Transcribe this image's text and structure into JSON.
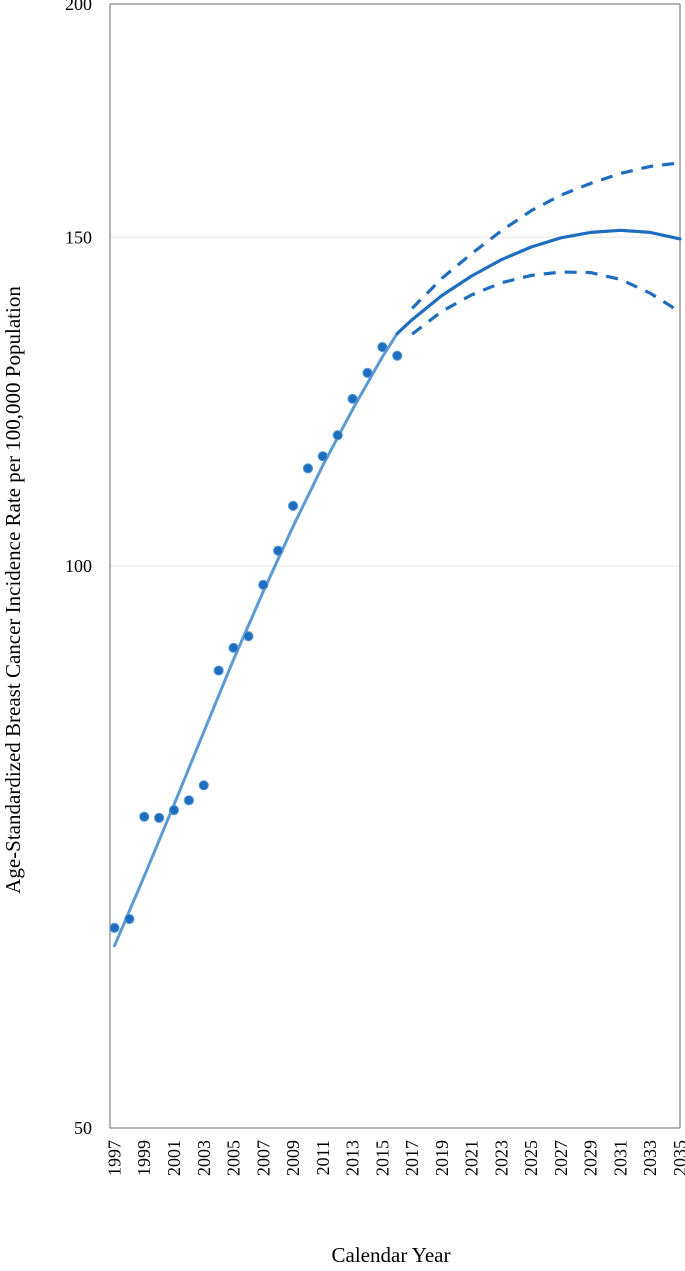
{
  "chart_data": {
    "type": "line",
    "title": "",
    "xlabel": "Calendar Year",
    "ylabel": "Age-Standardized Breast Cancer Incidence Rate per 100,000  Population",
    "xlim": [
      1996.7,
      2035
    ],
    "ylim": [
      50,
      200
    ],
    "y_scale": "log",
    "y_ticks": [
      50,
      100,
      150,
      200
    ],
    "y_tick_labels": [
      "50",
      "100",
      "150",
      "200"
    ],
    "x_ticks": [
      1997,
      1999,
      2001,
      2003,
      2005,
      2007,
      2009,
      2011,
      2013,
      2015,
      2017,
      2019,
      2021,
      2023,
      2025,
      2027,
      2029,
      2031,
      2033,
      2035
    ],
    "x_tick_labels": [
      "1997",
      "1999",
      "2001",
      "2003",
      "2005",
      "2007",
      "2009",
      "2011",
      "2013",
      "2015",
      "2017",
      "2019",
      "2021",
      "2023",
      "2025",
      "2027",
      "2029",
      "2031",
      "2033",
      "2035"
    ],
    "grid": "horizontal",
    "colors": {
      "observed": "#1f6dbe",
      "fitted": "#5b9bd5",
      "projection": "#1f6dbe",
      "grid": "#e6e6e6",
      "axis": "#888888"
    },
    "series": [
      {
        "style": "points",
        "x": [
          1997,
          1998,
          1999,
          2000,
          2001,
          2002,
          2003,
          2004,
          2005,
          2006,
          2007,
          2008,
          2009,
          2010,
          2011,
          2012,
          2013,
          2014,
          2015,
          2016
        ],
        "y": [
          64.0,
          64.7,
          73.4,
          73.3,
          74.0,
          74.9,
          76.3,
          87.9,
          90.4,
          91.7,
          97.7,
          101.9,
          107.7,
          112.8,
          114.5,
          117.5,
          122.9,
          126.9,
          131.0,
          129.6
        ]
      },
      {
        "style": "solid-light",
        "x": [
          1997,
          1999,
          2001,
          2003,
          2005,
          2007,
          2009,
          2011,
          2013,
          2015,
          2016
        ],
        "y": [
          62.6,
          68.2,
          74.5,
          81.5,
          89.1,
          96.9,
          105.0,
          113.2,
          121.3,
          129.4,
          133.2
        ]
      },
      {
        "style": "solid",
        "x": [
          2016,
          2017,
          2019,
          2021,
          2023,
          2025,
          2027,
          2029,
          2031,
          2033,
          2035
        ],
        "y": [
          133.2,
          135.5,
          139.6,
          143.0,
          145.9,
          148.2,
          149.9,
          150.9,
          151.3,
          150.9,
          149.7
        ]
      },
      {
        "style": "dashed",
        "x": [
          2017,
          2019,
          2021,
          2023,
          2025,
          2027,
          2029,
          2031,
          2033,
          2035
        ],
        "y": [
          137.4,
          142.6,
          147.0,
          151.2,
          155.0,
          158.0,
          160.3,
          162.3,
          163.7,
          164.4
        ]
      },
      {
        "style": "dashed",
        "x": [
          2017,
          2019,
          2021,
          2023,
          2025,
          2027,
          2029,
          2031,
          2033,
          2035
        ],
        "y": [
          133.1,
          136.9,
          139.7,
          141.8,
          143.1,
          143.7,
          143.6,
          142.4,
          140.0,
          136.8
        ]
      }
    ]
  }
}
